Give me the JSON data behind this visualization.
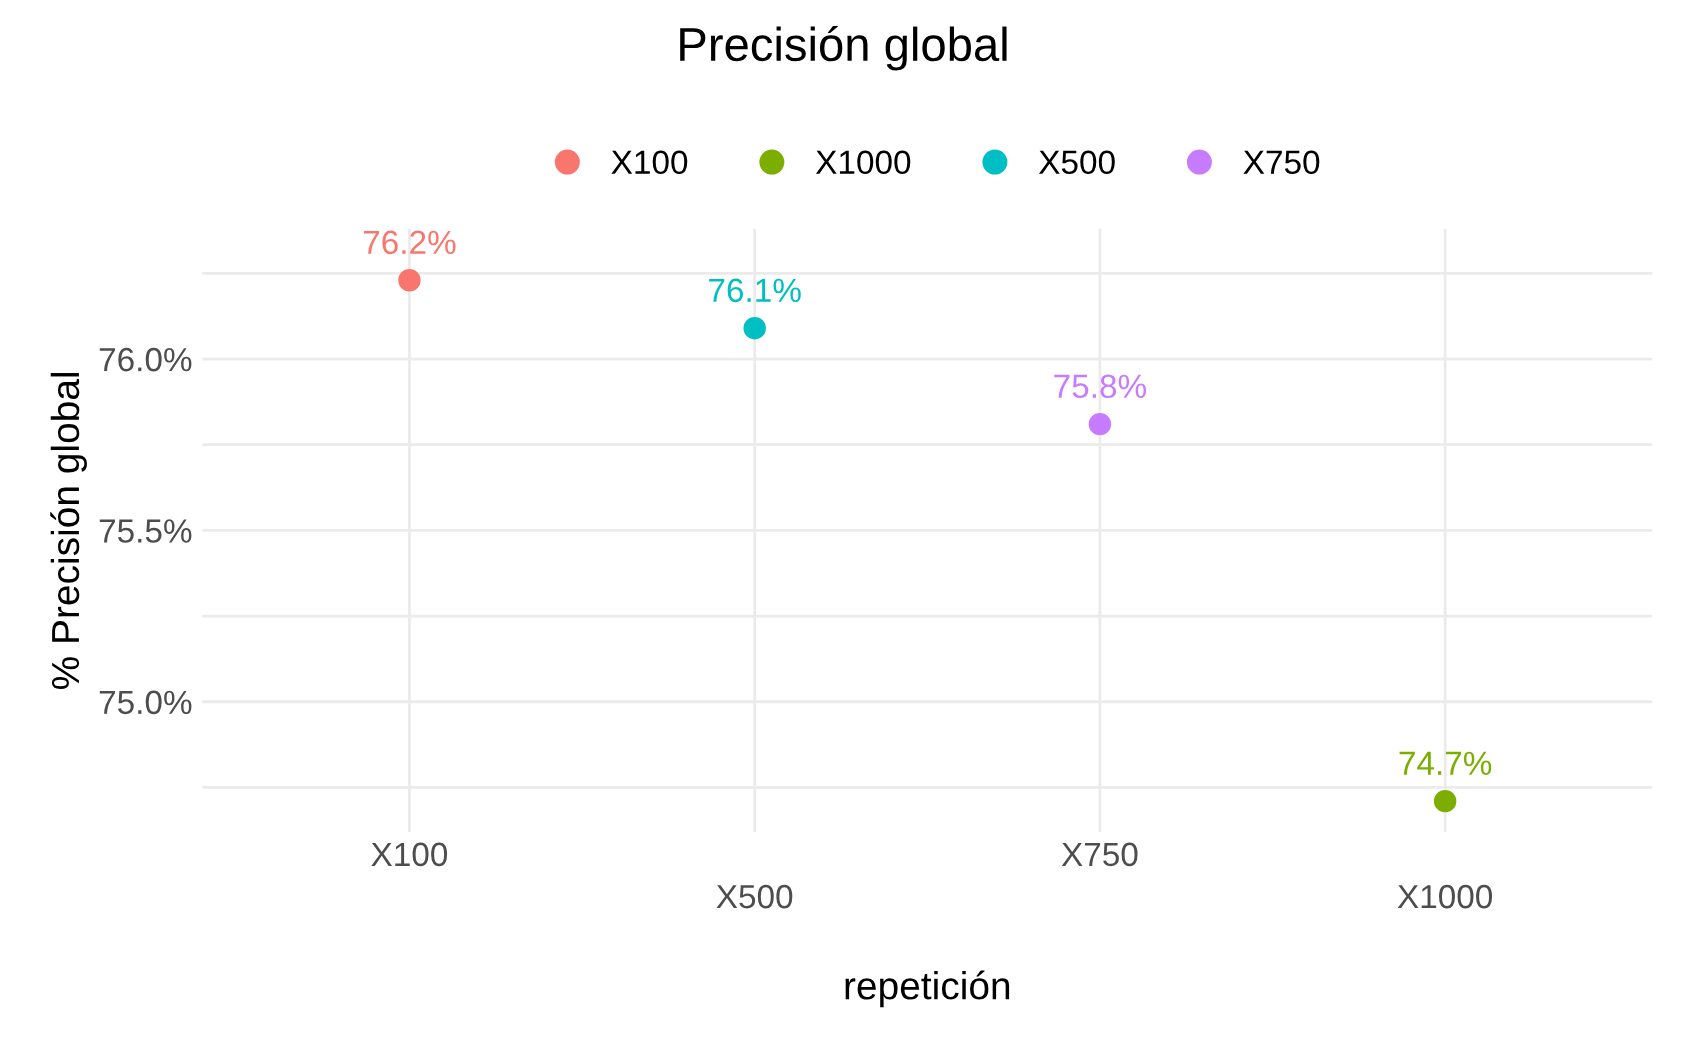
{
  "chart_data": {
    "type": "scatter",
    "title": "Precisión global",
    "xlabel": "repetición",
    "ylabel": "% Precisión global",
    "categories": [
      "X100",
      "X500",
      "X750",
      "X1000"
    ],
    "series": [
      {
        "name": "X100",
        "color": "#f8766d",
        "values": [
          76.23,
          null,
          null,
          null
        ],
        "value_labels": [
          "76.2%",
          null,
          null,
          null
        ]
      },
      {
        "name": "X1000",
        "color": "#7cae00",
        "values": [
          null,
          null,
          null,
          74.71
        ],
        "value_labels": [
          null,
          null,
          null,
          "74.7%"
        ]
      },
      {
        "name": "X500",
        "color": "#00bfc4",
        "values": [
          null,
          76.09,
          null,
          null
        ],
        "value_labels": [
          null,
          "76.1%",
          null,
          null
        ]
      },
      {
        "name": "X750",
        "color": "#c77cff",
        "values": [
          null,
          null,
          75.81,
          null
        ],
        "value_labels": [
          null,
          null,
          "75.8%",
          null
        ]
      }
    ],
    "ylim": [
      74.62,
      76.38
    ],
    "yticks": [
      {
        "value": 74.75,
        "label": null
      },
      {
        "value": 75.0,
        "label": "75.0%"
      },
      {
        "value": 75.25,
        "label": null
      },
      {
        "value": 75.5,
        "label": "75.5%"
      },
      {
        "value": 75.75,
        "label": null
      },
      {
        "value": 76.0,
        "label": "76.0%"
      },
      {
        "value": 76.25,
        "label": null
      }
    ],
    "grid": true,
    "legend": "top",
    "marker": "circle"
  }
}
